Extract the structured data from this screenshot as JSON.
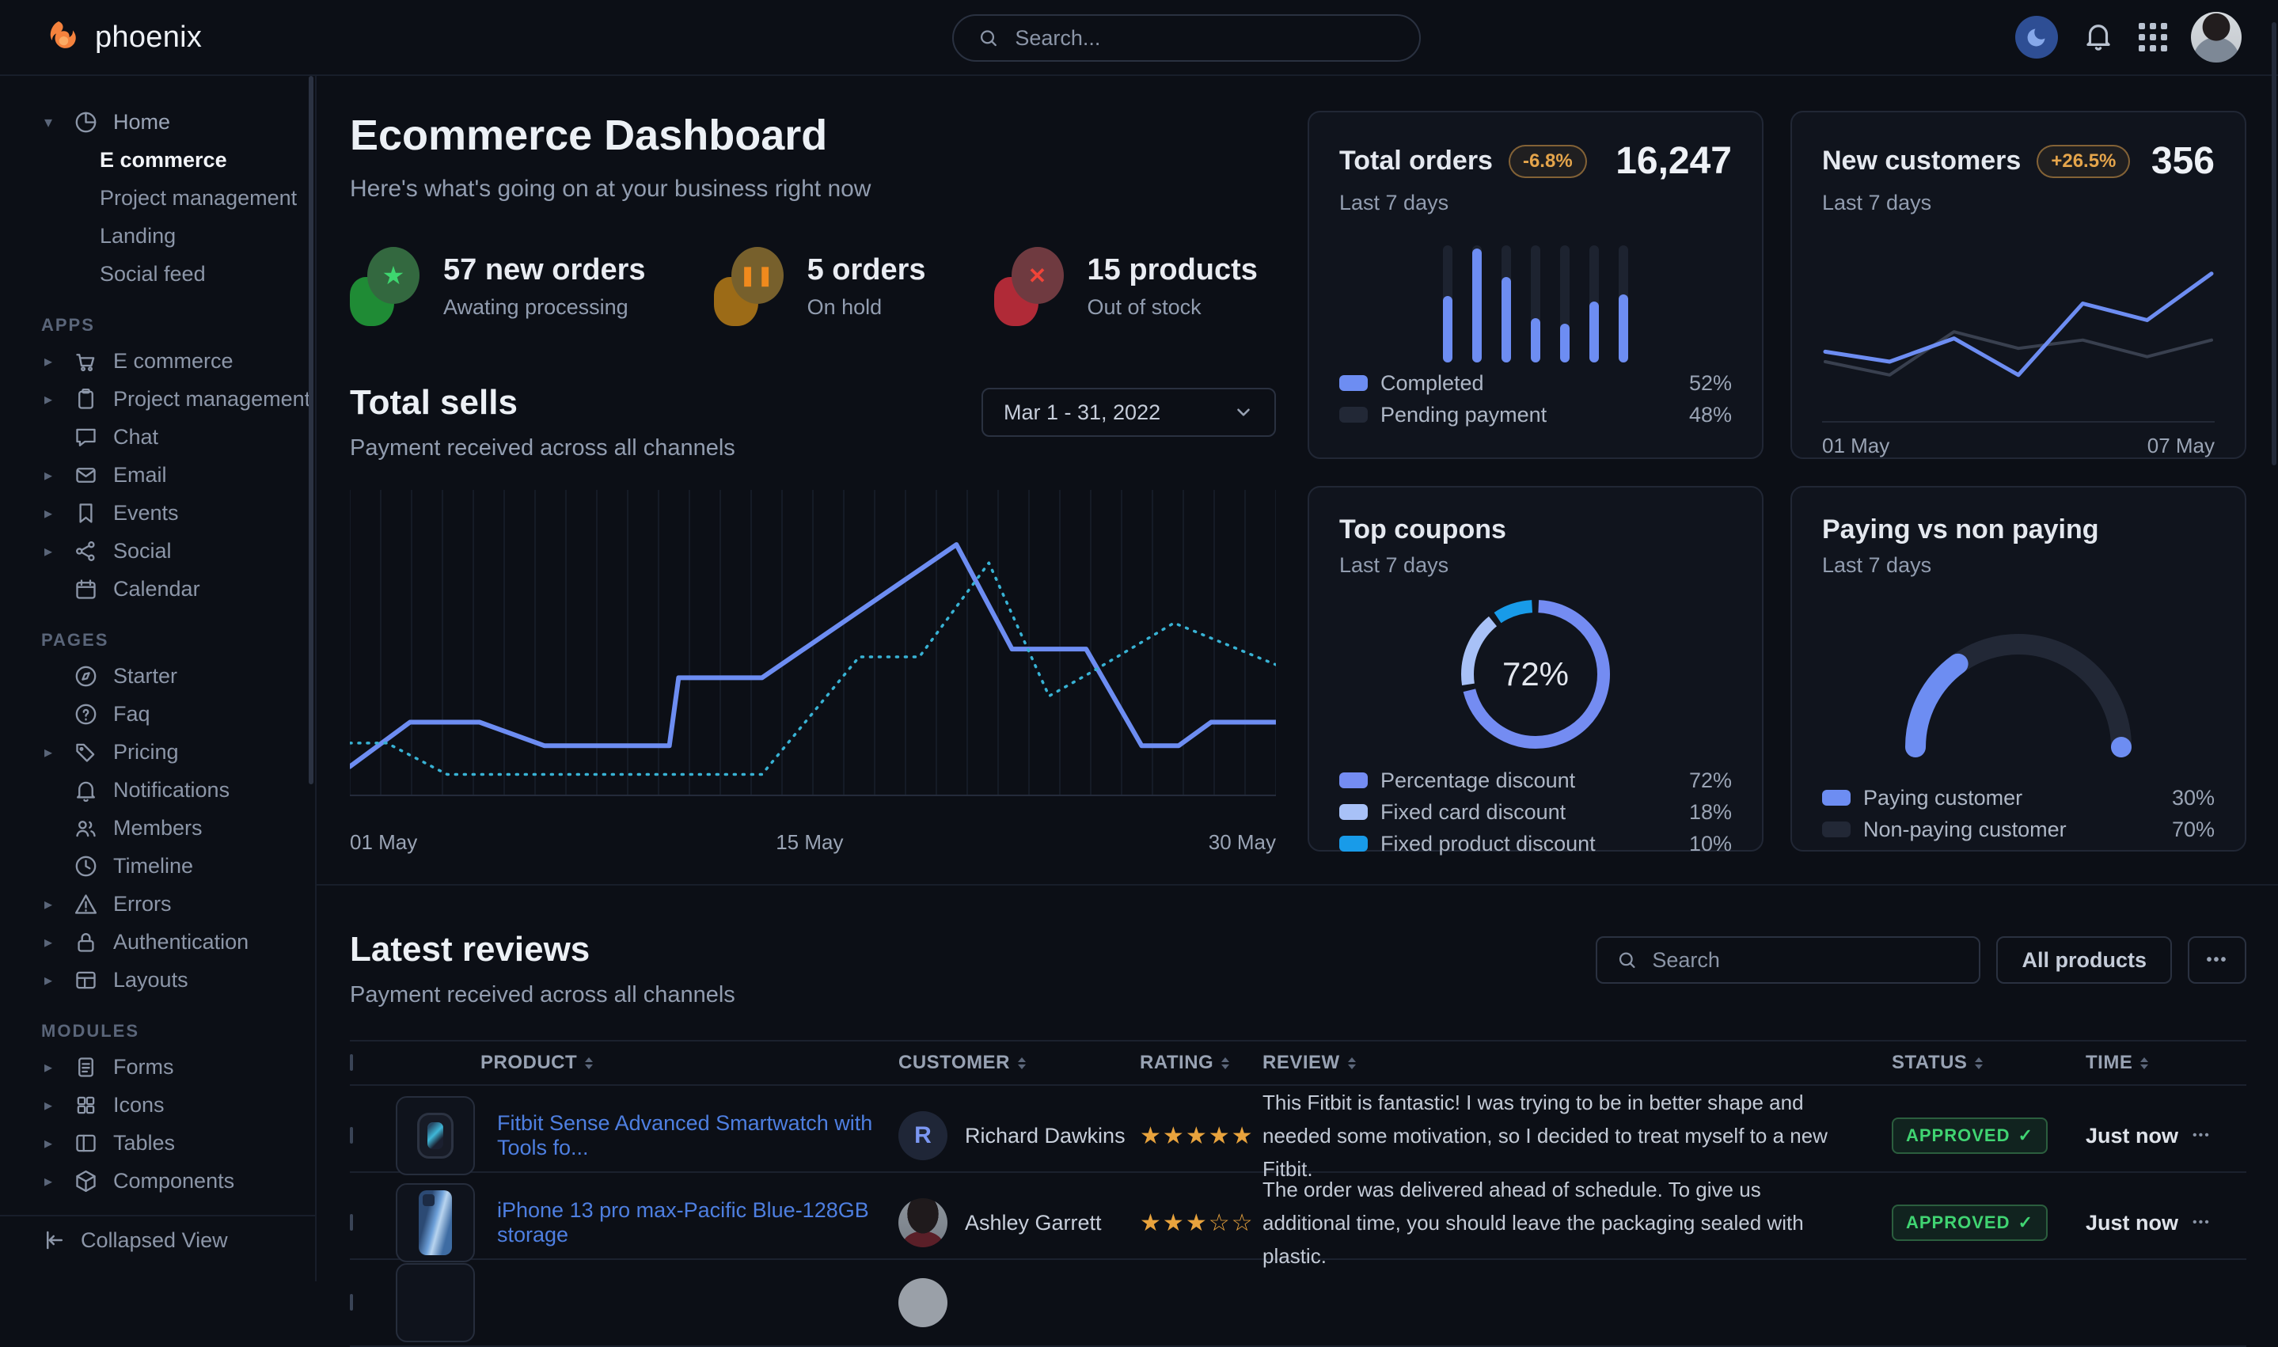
{
  "navbar": {
    "brand": "phoenix",
    "search_placeholder": "Search..."
  },
  "sidebar": {
    "home": {
      "label": "Home",
      "children": [
        {
          "label": "E commerce",
          "active": true
        },
        {
          "label": "Project management",
          "active": false
        },
        {
          "label": "Landing",
          "active": false
        },
        {
          "label": "Social feed",
          "active": false
        }
      ]
    },
    "sections": [
      {
        "label": "APPS",
        "items": [
          {
            "label": "E commerce",
            "icon": "cart-icon",
            "caret": true
          },
          {
            "label": "Project management",
            "icon": "clipboard-icon",
            "caret": true
          },
          {
            "label": "Chat",
            "icon": "chat-icon",
            "caret": false
          },
          {
            "label": "Email",
            "icon": "mail-icon",
            "caret": true
          },
          {
            "label": "Events",
            "icon": "bookmark-icon",
            "caret": true
          },
          {
            "label": "Social",
            "icon": "share-icon",
            "caret": true
          },
          {
            "label": "Calendar",
            "icon": "calendar-icon",
            "caret": false
          }
        ]
      },
      {
        "label": "PAGES",
        "items": [
          {
            "label": "Starter",
            "icon": "compass-icon",
            "caret": false
          },
          {
            "label": "Faq",
            "icon": "question-icon",
            "caret": false
          },
          {
            "label": "Pricing",
            "icon": "tag-icon",
            "caret": true
          },
          {
            "label": "Notifications",
            "icon": "bell-icon",
            "caret": false
          },
          {
            "label": "Members",
            "icon": "users-icon",
            "caret": false
          },
          {
            "label": "Timeline",
            "icon": "clock-icon",
            "caret": false
          },
          {
            "label": "Errors",
            "icon": "warning-icon",
            "caret": true
          },
          {
            "label": "Authentication",
            "icon": "lock-icon",
            "caret": true
          },
          {
            "label": "Layouts",
            "icon": "layout-icon",
            "caret": true
          }
        ]
      },
      {
        "label": "MODULES",
        "items": [
          {
            "label": "Forms",
            "icon": "file-icon",
            "caret": true
          },
          {
            "label": "Icons",
            "icon": "grid-icon",
            "caret": true
          },
          {
            "label": "Tables",
            "icon": "table-icon",
            "caret": true
          },
          {
            "label": "Components",
            "icon": "box-icon",
            "caret": true
          }
        ]
      }
    ],
    "footer_label": "Collapsed View"
  },
  "header": {
    "title": "Ecommerce Dashboard",
    "subtitle": "Here's what's going on at your business right now"
  },
  "stats": [
    {
      "value": "57 new orders",
      "label": "Awating processing",
      "icon": "star-icon",
      "color": "#3ed66f"
    },
    {
      "value": "5 orders",
      "label": "On hold",
      "icon": "pause-icon",
      "color": "#f08a1d"
    },
    {
      "value": "15 products",
      "label": "Out of stock",
      "icon": "x-icon",
      "color": "#f04438"
    }
  ],
  "total_sells": {
    "title": "Total sells",
    "subtitle": "Payment received across all channels",
    "date_range": "Mar 1 - 31, 2022",
    "x_labels": [
      "01 May",
      "15 May",
      "30 May"
    ]
  },
  "total_orders": {
    "title": "Total orders",
    "badge": "-6.8%",
    "period": "Last 7 days",
    "value": "16,247",
    "legend": [
      {
        "label": "Completed",
        "value": "52%"
      },
      {
        "label": "Pending payment",
        "value": "48%"
      }
    ]
  },
  "new_customers": {
    "title": "New customers",
    "badge": "+26.5%",
    "period": "Last 7 days",
    "value": "356",
    "x_start": "01 May",
    "x_end": "07 May"
  },
  "top_coupons": {
    "title": "Top coupons",
    "period": "Last 7 days",
    "center_value": "72%",
    "legend": [
      {
        "label": "Percentage discount",
        "value": "72%",
        "color": "#748cf2"
      },
      {
        "label": "Fixed card discount",
        "value": "18%",
        "color": "#a8c1f7"
      },
      {
        "label": "Fixed product discount",
        "value": "10%",
        "color": "#189be9"
      }
    ]
  },
  "paying": {
    "title": "Paying vs non paying",
    "period": "Last 7 days",
    "legend": [
      {
        "label": "Paying customer",
        "value": "30%",
        "color": "#6d8df2"
      },
      {
        "label": "Non-paying customer",
        "value": "70%",
        "color": "#222836"
      }
    ]
  },
  "reviews": {
    "title": "Latest reviews",
    "subtitle": "Payment received across all channels",
    "search_placeholder": "Search",
    "filter_label": "All products",
    "more_label": "•••",
    "columns": [
      "PRODUCT",
      "CUSTOMER",
      "RATING",
      "REVIEW",
      "STATUS",
      "TIME"
    ],
    "rows": [
      {
        "product": "Fitbit Sense Advanced Smartwatch with Tools fo...",
        "customer": "Richard Dawkins",
        "avatar_initial": "R",
        "rating": 5,
        "review": "This Fitbit is fantastic! I was trying to be in better shape and needed some motivation, so I decided to treat myself to a new Fitbit.",
        "status": "APPROVED",
        "status_check": "✓",
        "time": "Just now"
      },
      {
        "product": "iPhone 13 pro max-Pacific Blue-128GB storage",
        "customer": "Ashley Garrett",
        "avatar_initial": "",
        "rating": 3,
        "review": "The order was delivered ahead of schedule. To give us additional time, you should leave the packaging sealed with plastic.",
        "status": "APPROVED",
        "status_check": "✓",
        "time": "Just now"
      }
    ]
  },
  "chart_data": [
    {
      "name": "total_sells",
      "type": "line",
      "title": "Total sells",
      "x_axis": {
        "labels": [
          "01 May",
          "15 May",
          "30 May"
        ]
      },
      "ylim": [
        0,
        100
      ],
      "grid": "vertical",
      "legend_position": "none",
      "note": "y values estimated as percent of plot height; axis unlabeled",
      "series": [
        {
          "name": "current period",
          "style": "solid",
          "color": "#6d8df2",
          "points": [
            [
              0,
              8
            ],
            [
              6.5,
              25
            ],
            [
              14,
              25
            ],
            [
              21,
              16
            ],
            [
              34.5,
              16
            ],
            [
              35.5,
              42
            ],
            [
              44.5,
              42
            ],
            [
              65.5,
              93
            ],
            [
              71.5,
              53
            ],
            [
              79.5,
              53
            ],
            [
              85.5,
              16
            ],
            [
              89.5,
              16
            ],
            [
              93,
              25
            ],
            [
              100,
              25
            ]
          ]
        },
        {
          "name": "previous period",
          "style": "dashed",
          "color": "#38b2d4",
          "points": [
            [
              0,
              17
            ],
            [
              4,
              17
            ],
            [
              10.5,
              5
            ],
            [
              44.5,
              5
            ],
            [
              55,
              50
            ],
            [
              61.5,
              50
            ],
            [
              69,
              86
            ],
            [
              75.5,
              35
            ],
            [
              80,
              44
            ],
            [
              89,
              63
            ],
            [
              100,
              47
            ]
          ]
        }
      ]
    },
    {
      "name": "total_orders",
      "type": "bar",
      "stacked": true,
      "categories": [
        "1",
        "2",
        "3",
        "4",
        "5",
        "6",
        "7"
      ],
      "series": [
        {
          "name": "Completed",
          "color": "#6d8df2",
          "values": [
            57,
            97,
            73,
            38,
            33,
            52,
            58
          ]
        },
        {
          "name": "Pending payment",
          "color": "#1d2330",
          "values": [
            43,
            3,
            27,
            62,
            67,
            48,
            42
          ]
        }
      ],
      "summary": {
        "Completed": "52%",
        "Pending payment": "48%"
      }
    },
    {
      "name": "new_customers",
      "type": "line",
      "x_axis": {
        "labels": [
          "01 May",
          "07 May"
        ]
      },
      "ylim": [
        0,
        100
      ],
      "series": [
        {
          "name": "new customers",
          "color": "#6d8df2",
          "values": [
            36,
            30,
            44,
            22,
            65,
            55,
            83
          ]
        },
        {
          "name": "baseline",
          "color": "#39404f",
          "values": [
            30,
            22,
            48,
            38,
            43,
            33,
            43
          ]
        }
      ]
    },
    {
      "name": "top_coupons",
      "type": "pie",
      "donut": true,
      "center_label": "72%",
      "slices": [
        {
          "label": "Percentage discount",
          "value": 72,
          "color": "#748cf2"
        },
        {
          "label": "Fixed card discount",
          "value": 18,
          "color": "#a8c1f7"
        },
        {
          "label": "Fixed product discount",
          "value": 10,
          "color": "#189be9"
        }
      ]
    },
    {
      "name": "paying_vs_non_paying",
      "type": "gauge",
      "slices": [
        {
          "label": "Paying customer",
          "value": 30,
          "color": "#6d8df2"
        },
        {
          "label": "Non-paying customer",
          "value": 70,
          "color": "#222836"
        }
      ]
    }
  ]
}
